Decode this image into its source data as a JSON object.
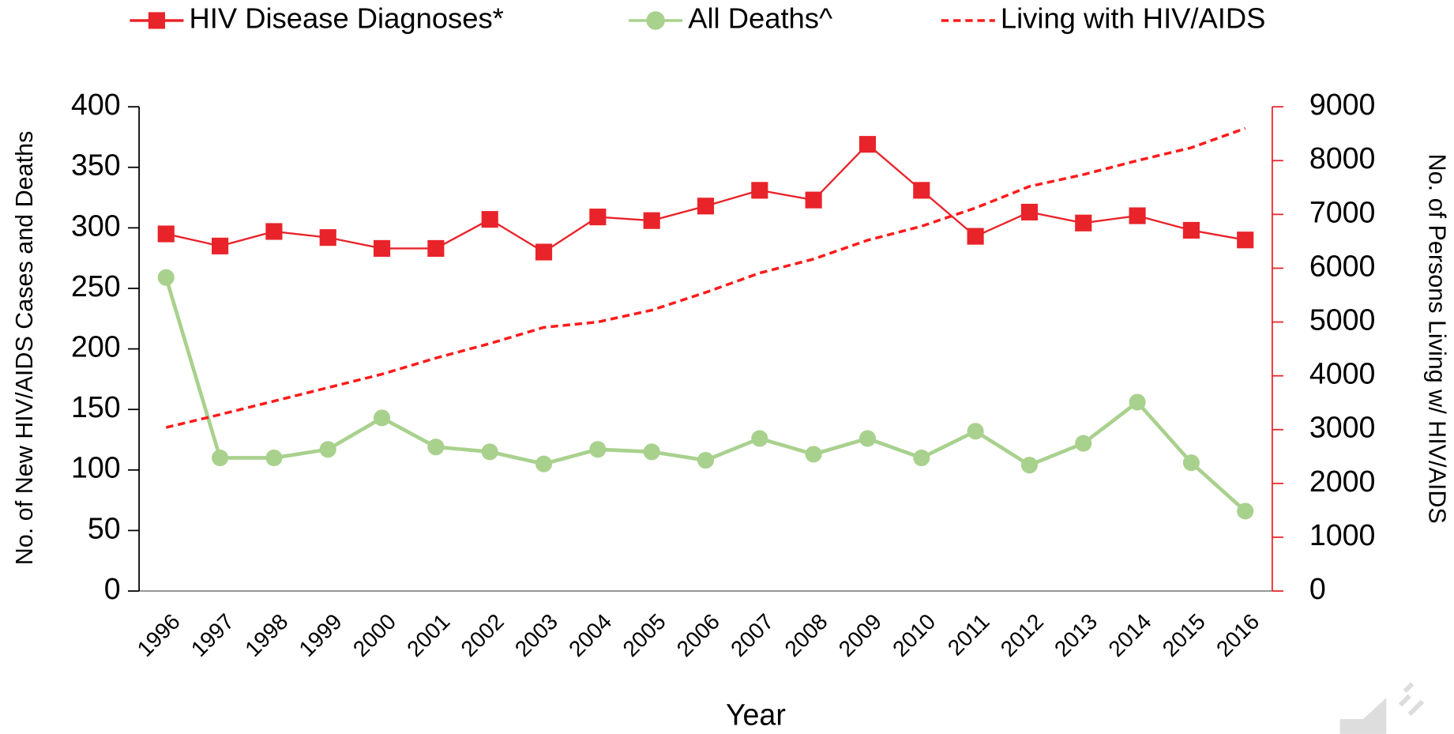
{
  "chart_data": {
    "type": "line",
    "x_label": "Year",
    "y_label": "No. of New HIV/AIDS Cases and Deaths",
    "y2_label": "No. of Persons Living w/ HIV/AIDS",
    "categories": [
      "1996",
      "1997",
      "1998",
      "1999",
      "2000",
      "2001",
      "2002",
      "2003",
      "2004",
      "2005",
      "2006",
      "2007",
      "2008",
      "2009",
      "2010",
      "2011",
      "2012",
      "2013",
      "2014",
      "2015",
      "2016"
    ],
    "ylim": [
      0,
      400
    ],
    "yticks": [
      0,
      50,
      100,
      150,
      200,
      250,
      300,
      350,
      400
    ],
    "y2lim": [
      0,
      9000
    ],
    "y2ticks": [
      0,
      1000,
      2000,
      3000,
      4000,
      5000,
      6000,
      7000,
      8000,
      9000
    ],
    "legend": "top",
    "series": [
      {
        "name": "HIV Disease Diagnoses*",
        "color": "#e8242a",
        "marker": "square",
        "values": [
          295,
          285,
          297,
          292,
          283,
          283,
          307,
          280,
          309,
          306,
          318,
          331,
          323,
          369,
          331,
          293,
          313,
          304,
          310,
          298,
          290
        ]
      },
      {
        "name": "All Deaths^",
        "color": "#a9d18e",
        "marker": "circle",
        "values": [
          259,
          110,
          110,
          117,
          143,
          119,
          115,
          105,
          117,
          115,
          108,
          126,
          113,
          126,
          110,
          132,
          104,
          122,
          156,
          106,
          66
        ]
      },
      {
        "name": "Living with HIV/AIDS",
        "color": "#ff1a1a",
        "dash": true,
        "axis": "y2",
        "values": [
          3040,
          3280,
          3530,
          3780,
          4030,
          4330,
          4600,
          4900,
          5000,
          5220,
          5550,
          5910,
          6170,
          6520,
          6780,
          7120,
          7520,
          7740,
          8000,
          8240,
          8600
        ]
      }
    ]
  }
}
